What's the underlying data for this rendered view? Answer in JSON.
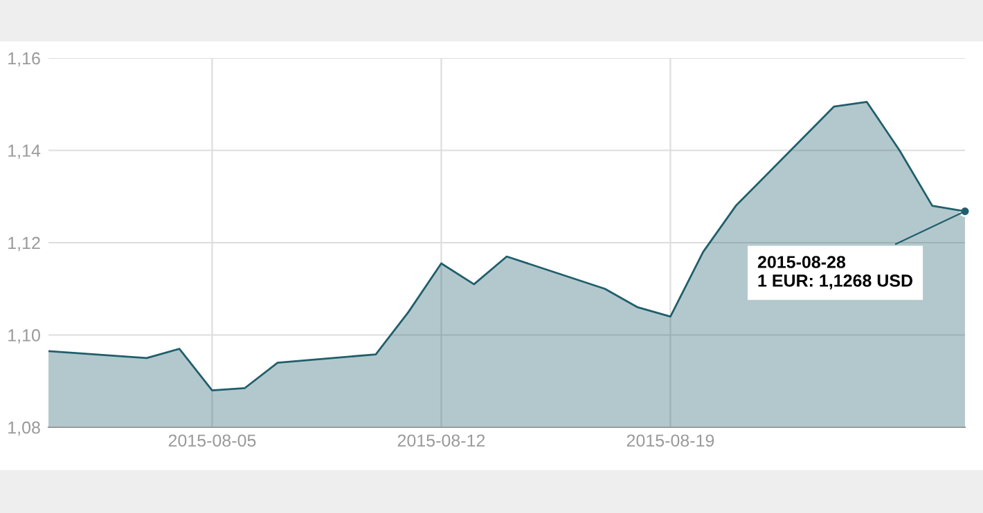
{
  "chart_data": {
    "type": "area",
    "x": [
      "2015-07-31",
      "2015-08-03",
      "2015-08-04",
      "2015-08-05",
      "2015-08-06",
      "2015-08-07",
      "2015-08-10",
      "2015-08-11",
      "2015-08-12",
      "2015-08-13",
      "2015-08-14",
      "2015-08-17",
      "2015-08-18",
      "2015-08-19",
      "2015-08-20",
      "2015-08-21",
      "2015-08-24",
      "2015-08-25",
      "2015-08-26",
      "2015-08-27",
      "2015-08-28"
    ],
    "series": [
      {
        "color": "#1f5f6b",
        "values": [
          1.0965,
          1.095,
          1.097,
          1.088,
          1.0885,
          1.094,
          1.0958,
          1.105,
          1.1155,
          1.111,
          1.117,
          1.11,
          1.106,
          1.104,
          1.118,
          1.128,
          1.1495,
          1.1505,
          1.14,
          1.128,
          1.1268
        ]
      }
    ],
    "xlim": [
      "2015-07-31",
      "2015-08-28"
    ],
    "xticks": [
      "2015-08-05",
      "2015-08-12",
      "2015-08-19"
    ],
    "ylim": [
      1.08,
      1.16
    ],
    "yticks": [
      {
        "value": 1.08,
        "label": "1,08"
      },
      {
        "value": 1.1,
        "label": "1,10"
      },
      {
        "value": 1.12,
        "label": "1,12"
      },
      {
        "value": 1.14,
        "label": "1,14"
      },
      {
        "value": 1.16,
        "label": "1,16"
      }
    ],
    "grid": true,
    "annotations": [
      {
        "text": "2015-08-28\n1 EUR: 1,1268 USD",
        "x": "2015-08-28",
        "y": 1.1268
      }
    ]
  }
}
